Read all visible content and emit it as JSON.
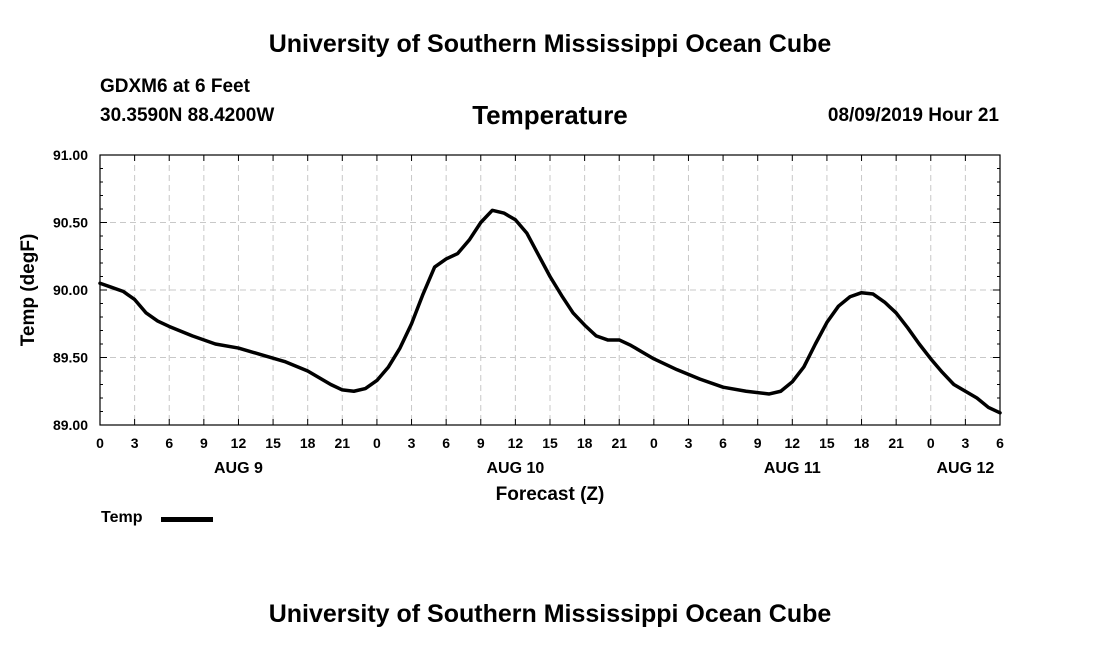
{
  "header": {
    "title": "University of Southern Mississippi Ocean Cube",
    "station": "GDXM6 at 6 Feet",
    "coords": "30.3590N 88.4200W",
    "parameter": "Temperature",
    "datetime": "08/09/2019 Hour 21"
  },
  "footer": {
    "title": "University of Southern Mississippi Ocean Cube"
  },
  "legend": {
    "label": "Temp"
  },
  "colors": {
    "line": "#000000",
    "grid": "#c8c8c8",
    "axis": "#000000"
  },
  "chart_data": {
    "type": "line",
    "title": "Temperature",
    "xlabel": "Forecast (Z)",
    "ylabel": "Temp (degF)",
    "xlim": [
      0,
      78
    ],
    "ylim": [
      89.0,
      91.0
    ],
    "grid": true,
    "legend_position": "bottom-left",
    "yticks": [
      "89.00",
      "89.50",
      "90.00",
      "90.50",
      "91.00"
    ],
    "xtick_labels": [
      "0",
      "3",
      "6",
      "9",
      "12",
      "15",
      "18",
      "21",
      "0",
      "3",
      "6",
      "9",
      "12",
      "15",
      "18",
      "21",
      "0",
      "3",
      "6",
      "9",
      "12",
      "15",
      "18",
      "21",
      "0",
      "3",
      "6"
    ],
    "date_labels": [
      {
        "label": "AUG 9",
        "hour": 12
      },
      {
        "label": "AUG 10",
        "hour": 36
      },
      {
        "label": "AUG 11",
        "hour": 60
      },
      {
        "label": "AUG 12",
        "hour": 75
      }
    ],
    "series": [
      {
        "name": "Temp",
        "x": [
          0,
          1,
          2,
          3,
          4,
          5,
          6,
          8,
          10,
          12,
          14,
          16,
          18,
          20,
          21,
          22,
          23,
          24,
          25,
          26,
          27,
          28,
          29,
          30,
          31,
          32,
          33,
          34,
          35,
          36,
          37,
          38,
          39,
          40,
          41,
          42,
          43,
          44,
          45,
          46,
          47,
          48,
          50,
          52,
          54,
          56,
          58,
          59,
          60,
          61,
          62,
          63,
          64,
          65,
          66,
          67,
          68,
          69,
          70,
          71,
          72,
          73,
          74,
          75,
          76,
          77,
          78
        ],
        "values": [
          90.05,
          90.02,
          89.99,
          89.93,
          89.83,
          89.77,
          89.73,
          89.66,
          89.6,
          89.57,
          89.52,
          89.47,
          89.4,
          89.3,
          89.26,
          89.25,
          89.27,
          89.33,
          89.43,
          89.57,
          89.75,
          89.97,
          90.17,
          90.23,
          90.27,
          90.37,
          90.5,
          90.59,
          90.57,
          90.52,
          90.42,
          90.26,
          90.1,
          89.96,
          89.83,
          89.74,
          89.66,
          89.63,
          89.63,
          89.59,
          89.54,
          89.49,
          89.41,
          89.34,
          89.28,
          89.25,
          89.23,
          89.25,
          89.32,
          89.43,
          89.6,
          89.76,
          89.88,
          89.95,
          89.98,
          89.97,
          89.91,
          89.83,
          89.72,
          89.6,
          89.49,
          89.39,
          89.3,
          89.25,
          89.2,
          89.13,
          89.09
        ]
      }
    ]
  }
}
